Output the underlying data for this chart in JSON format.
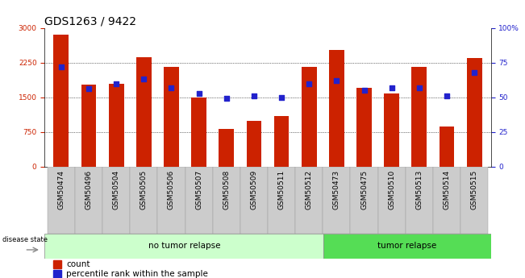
{
  "title": "GDS1263 / 9422",
  "samples": [
    "GSM50474",
    "GSM50496",
    "GSM50504",
    "GSM50505",
    "GSM50506",
    "GSM50507",
    "GSM50508",
    "GSM50509",
    "GSM50511",
    "GSM50512",
    "GSM50473",
    "GSM50475",
    "GSM50510",
    "GSM50513",
    "GSM50514",
    "GSM50515"
  ],
  "counts": [
    2850,
    1780,
    1800,
    2370,
    2150,
    1490,
    820,
    1000,
    1100,
    2160,
    2530,
    1700,
    1580,
    2150,
    870,
    2350
  ],
  "percentiles": [
    72,
    56,
    60,
    63,
    57,
    53,
    49,
    51,
    50,
    60,
    62,
    55,
    57,
    57,
    51,
    68
  ],
  "no_tumor_relapse_count": 10,
  "tumor_relapse_count": 6,
  "ylim_left": [
    0,
    3000
  ],
  "ylim_right": [
    0,
    100
  ],
  "yticks_left": [
    0,
    750,
    1500,
    2250,
    3000
  ],
  "yticks_right": [
    0,
    25,
    50,
    75,
    100
  ],
  "bar_color": "#cc2200",
  "dot_color": "#2222cc",
  "no_tumor_bg": "#ccffcc",
  "tumor_bg": "#55dd55",
  "xtick_bg": "#cccccc",
  "title_fontsize": 10,
  "tick_fontsize": 6.5,
  "label_fontsize": 7.5,
  "legend_fontsize": 7.5
}
